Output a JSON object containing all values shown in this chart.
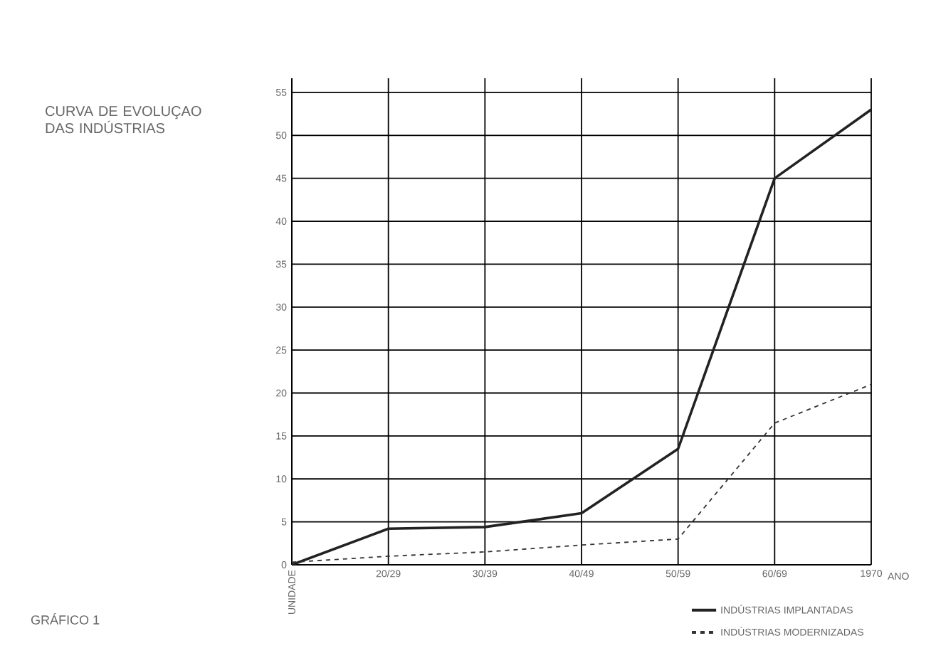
{
  "chart_data": {
    "type": "line",
    "title": "CURVA DE EVOLUÇAO DAS INDÚSTRIAS",
    "xlabel": "ANO",
    "ylabel": "UNIDADE",
    "annotations": [
      "GRÁFICO 1"
    ],
    "categories": [
      null,
      "20/29",
      "30/39",
      "40/49",
      "50/59",
      "60/69",
      "1970"
    ],
    "series": [
      {
        "name": "INDÚSTRIAS IMPLANTADAS",
        "color": "#222222",
        "line_style": "solid",
        "values": [
          0,
          4.2,
          4.4,
          6,
          13.5,
          45,
          53
        ]
      },
      {
        "name": "INDÚSTRIAS MODERNIZADAS",
        "color": "#333333",
        "line_style": "dashed",
        "values": [
          0.3,
          1,
          1.5,
          2.3,
          3,
          16.5,
          21
        ]
      }
    ],
    "ylim": [
      0,
      55
    ],
    "yticks": [
      0,
      5,
      10,
      15,
      20,
      25,
      30,
      35,
      40,
      45,
      50,
      55
    ],
    "grid": true,
    "legend": "bottom right",
    "marker": "none"
  }
}
